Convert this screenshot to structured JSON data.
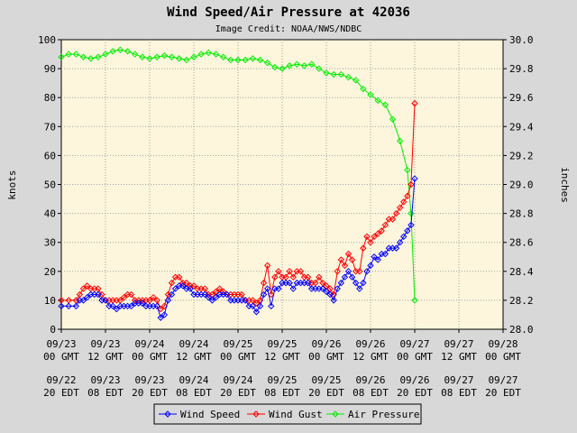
{
  "chart_data": {
    "type": "line",
    "title": "Wind Speed/Air Pressure at 42036",
    "subtitle": "Image Credit: NOAA/NWS/NDBC",
    "ylabel_left": "knots",
    "ylabel_right": "inches",
    "ylim_left": [
      0,
      100
    ],
    "ylim_right": [
      28.0,
      30.0
    ],
    "yticks_left": [
      "0",
      "10",
      "20",
      "30",
      "40",
      "50",
      "60",
      "70",
      "80",
      "90",
      "100"
    ],
    "yticks_right": [
      "28.0",
      "28.2",
      "28.4",
      "28.6",
      "28.8",
      "29.0",
      "29.2",
      "29.4",
      "29.6",
      "29.8",
      "30.0"
    ],
    "x_unit": "hours since 09/23 00 GMT",
    "xlim": [
      0,
      120
    ],
    "xticks": [
      {
        "x": 0,
        "gmt_date": "09/23",
        "gmt_time": "00 GMT",
        "edt_date": "09/22",
        "edt_time": "20 EDT"
      },
      {
        "x": 12,
        "gmt_date": "09/23",
        "gmt_time": "12 GMT",
        "edt_date": "09/23",
        "edt_time": "08 EDT"
      },
      {
        "x": 24,
        "gmt_date": "09/24",
        "gmt_time": "00 GMT",
        "edt_date": "09/23",
        "edt_time": "20 EDT"
      },
      {
        "x": 36,
        "gmt_date": "09/24",
        "gmt_time": "12 GMT",
        "edt_date": "09/24",
        "edt_time": "08 EDT"
      },
      {
        "x": 48,
        "gmt_date": "09/25",
        "gmt_time": "00 GMT",
        "edt_date": "09/24",
        "edt_time": "20 EDT"
      },
      {
        "x": 60,
        "gmt_date": "09/25",
        "gmt_time": "12 GMT",
        "edt_date": "09/25",
        "edt_time": "08 EDT"
      },
      {
        "x": 72,
        "gmt_date": "09/26",
        "gmt_time": "00 GMT",
        "edt_date": "09/25",
        "edt_time": "20 EDT"
      },
      {
        "x": 84,
        "gmt_date": "09/26",
        "gmt_time": "12 GMT",
        "edt_date": "09/26",
        "edt_time": "08 EDT"
      },
      {
        "x": 96,
        "gmt_date": "09/27",
        "gmt_time": "00 GMT",
        "edt_date": "09/26",
        "edt_time": "20 EDT"
      },
      {
        "x": 108,
        "gmt_date": "09/27",
        "gmt_time": "12 GMT",
        "edt_date": "09/27",
        "edt_time": "08 EDT"
      },
      {
        "x": 120,
        "gmt_date": "09/28",
        "gmt_time": "00 GMT",
        "edt_date": "09/27",
        "edt_time": "20 EDT"
      }
    ],
    "grid": true,
    "legend_position": "bottom",
    "colors": {
      "plot_bg": "#fdf6dc",
      "outer_bg": "#d8d8d8",
      "grid": "#a0a0a0"
    },
    "series": [
      {
        "name": "Wind Speed",
        "axis": "left",
        "color": "#0000ff",
        "marker": "diamond",
        "x": [
          0,
          2,
          4,
          5,
          6,
          7,
          8,
          9,
          10,
          11,
          12,
          13,
          14,
          15,
          16,
          17,
          18,
          19,
          20,
          21,
          22,
          23,
          24,
          25,
          26,
          27,
          28,
          29,
          30,
          31,
          32,
          33,
          34,
          35,
          36,
          37,
          38,
          39,
          40,
          41,
          42,
          43,
          44,
          45,
          46,
          47,
          48,
          49,
          50,
          51,
          52,
          53,
          54,
          55,
          56,
          57,
          58,
          59,
          60,
          61,
          62,
          63,
          64,
          65,
          66,
          67,
          68,
          69,
          70,
          71,
          72,
          73,
          74,
          75,
          76,
          77,
          78,
          79,
          80,
          81,
          82,
          83,
          84,
          85,
          86,
          87,
          88,
          89,
          90,
          91,
          92,
          93,
          94,
          95,
          96
        ],
        "values": [
          8,
          8,
          8,
          10,
          10,
          11,
          12,
          12,
          12,
          10,
          10,
          8,
          8,
          7,
          8,
          8,
          8,
          8,
          9,
          9,
          9,
          8,
          8,
          8,
          8,
          4,
          5,
          10,
          12,
          14,
          15,
          15,
          14,
          14,
          12,
          12,
          12,
          12,
          11,
          10,
          11,
          12,
          12,
          12,
          10,
          10,
          10,
          10,
          10,
          8,
          8,
          6,
          8,
          12,
          14,
          8,
          14,
          14,
          16,
          16,
          16,
          14,
          16,
          16,
          16,
          16,
          14,
          14,
          14,
          14,
          13,
          12,
          10,
          14,
          16,
          18,
          20,
          18,
          16,
          14,
          16,
          20,
          22,
          25,
          24,
          26,
          26,
          28,
          28,
          28,
          30,
          32,
          34,
          36,
          52
        ]
      },
      {
        "name": "Wind Gust",
        "axis": "left",
        "color": "#ff0000",
        "marker": "diamond",
        "x": [
          0,
          2,
          4,
          5,
          6,
          7,
          8,
          9,
          10,
          11,
          12,
          13,
          14,
          15,
          16,
          17,
          18,
          19,
          20,
          21,
          22,
          23,
          24,
          25,
          26,
          27,
          28,
          29,
          30,
          31,
          32,
          33,
          34,
          35,
          36,
          37,
          38,
          39,
          40,
          41,
          42,
          43,
          44,
          45,
          46,
          47,
          48,
          49,
          50,
          51,
          52,
          53,
          54,
          55,
          56,
          57,
          58,
          59,
          60,
          61,
          62,
          63,
          64,
          65,
          66,
          67,
          68,
          69,
          70,
          71,
          72,
          73,
          74,
          75,
          76,
          77,
          78,
          79,
          80,
          81,
          82,
          83,
          84,
          85,
          86,
          87,
          88,
          89,
          90,
          91,
          92,
          93,
          94,
          95,
          96
        ],
        "values": [
          10,
          10,
          10,
          12,
          14,
          15,
          14,
          14,
          14,
          12,
          10,
          10,
          10,
          10,
          10,
          11,
          12,
          12,
          10,
          10,
          10,
          10,
          10,
          11,
          10,
          7,
          8,
          12,
          16,
          18,
          18,
          16,
          16,
          15,
          15,
          14,
          14,
          14,
          12,
          12,
          13,
          14,
          13,
          12,
          12,
          12,
          12,
          12,
          10,
          10,
          10,
          9,
          10,
          16,
          22,
          12,
          18,
          20,
          18,
          18,
          20,
          18,
          20,
          20,
          18,
          18,
          16,
          16,
          18,
          16,
          15,
          14,
          12,
          20,
          24,
          22,
          26,
          24,
          20,
          20,
          28,
          32,
          30,
          32,
          33,
          34,
          36,
          38,
          38,
          40,
          42,
          44,
          46,
          50,
          78
        ]
      },
      {
        "name": "Air Pressure",
        "axis": "right",
        "color": "#00ee00",
        "marker": "diamond",
        "x": [
          0,
          2,
          4,
          6,
          8,
          10,
          12,
          14,
          16,
          18,
          20,
          22,
          24,
          26,
          28,
          30,
          32,
          34,
          36,
          38,
          40,
          42,
          44,
          46,
          48,
          50,
          52,
          54,
          56,
          58,
          60,
          62,
          64,
          66,
          68,
          70,
          72,
          74,
          76,
          78,
          80,
          82,
          84,
          86,
          88,
          90,
          92,
          94,
          95,
          96
        ],
        "values": [
          29.88,
          29.9,
          29.9,
          29.88,
          29.87,
          29.88,
          29.9,
          29.92,
          29.93,
          29.92,
          29.9,
          29.88,
          29.87,
          29.88,
          29.89,
          29.88,
          29.87,
          29.86,
          29.88,
          29.9,
          29.91,
          29.9,
          29.88,
          29.86,
          29.86,
          29.86,
          29.87,
          29.86,
          29.84,
          29.81,
          29.8,
          29.82,
          29.83,
          29.82,
          29.83,
          29.8,
          29.77,
          29.76,
          29.76,
          29.74,
          29.72,
          29.66,
          29.62,
          29.58,
          29.55,
          29.45,
          29.3,
          29.1,
          28.8,
          28.2
        ]
      }
    ]
  }
}
